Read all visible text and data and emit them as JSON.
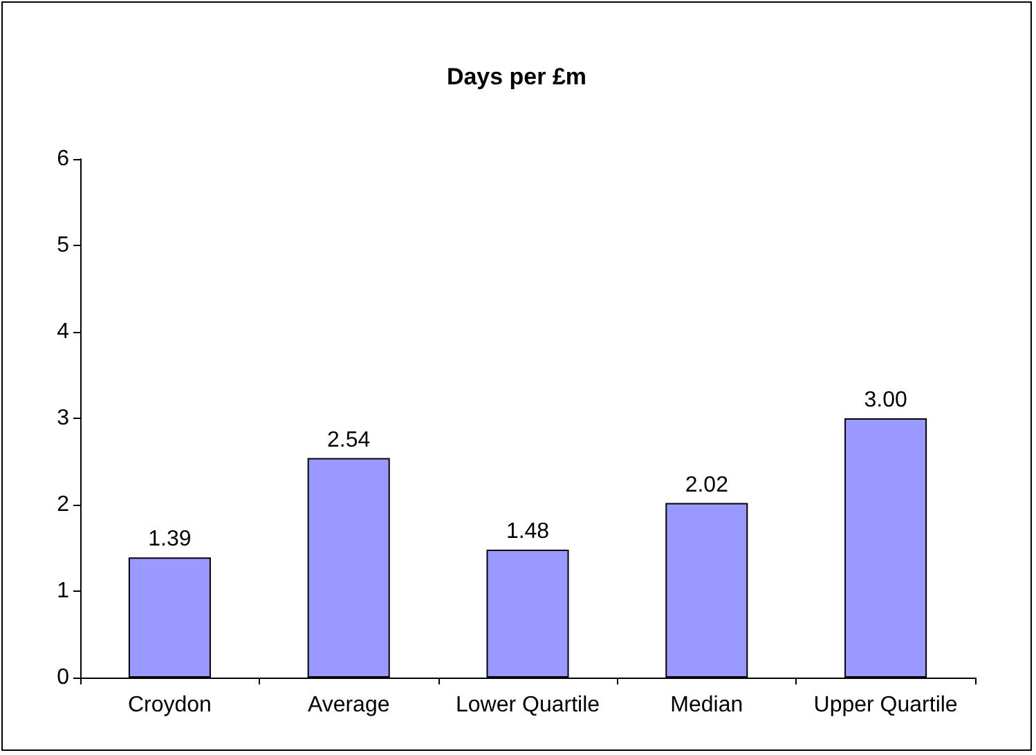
{
  "chart_data": {
    "type": "bar",
    "title": "Days per £m",
    "categories": [
      "Croydon",
      "Average",
      "Lower Quartile",
      "Median",
      "Upper Quartile"
    ],
    "values": [
      1.39,
      2.54,
      1.48,
      2.02,
      3.0
    ],
    "value_labels": [
      "1.39",
      "2.54",
      "1.48",
      "2.02",
      "3.00"
    ],
    "color": "#9999ff",
    "ylim": [
      0,
      6
    ],
    "yticks": [
      0,
      1,
      2,
      3,
      4,
      5,
      6
    ],
    "grid": false
  }
}
